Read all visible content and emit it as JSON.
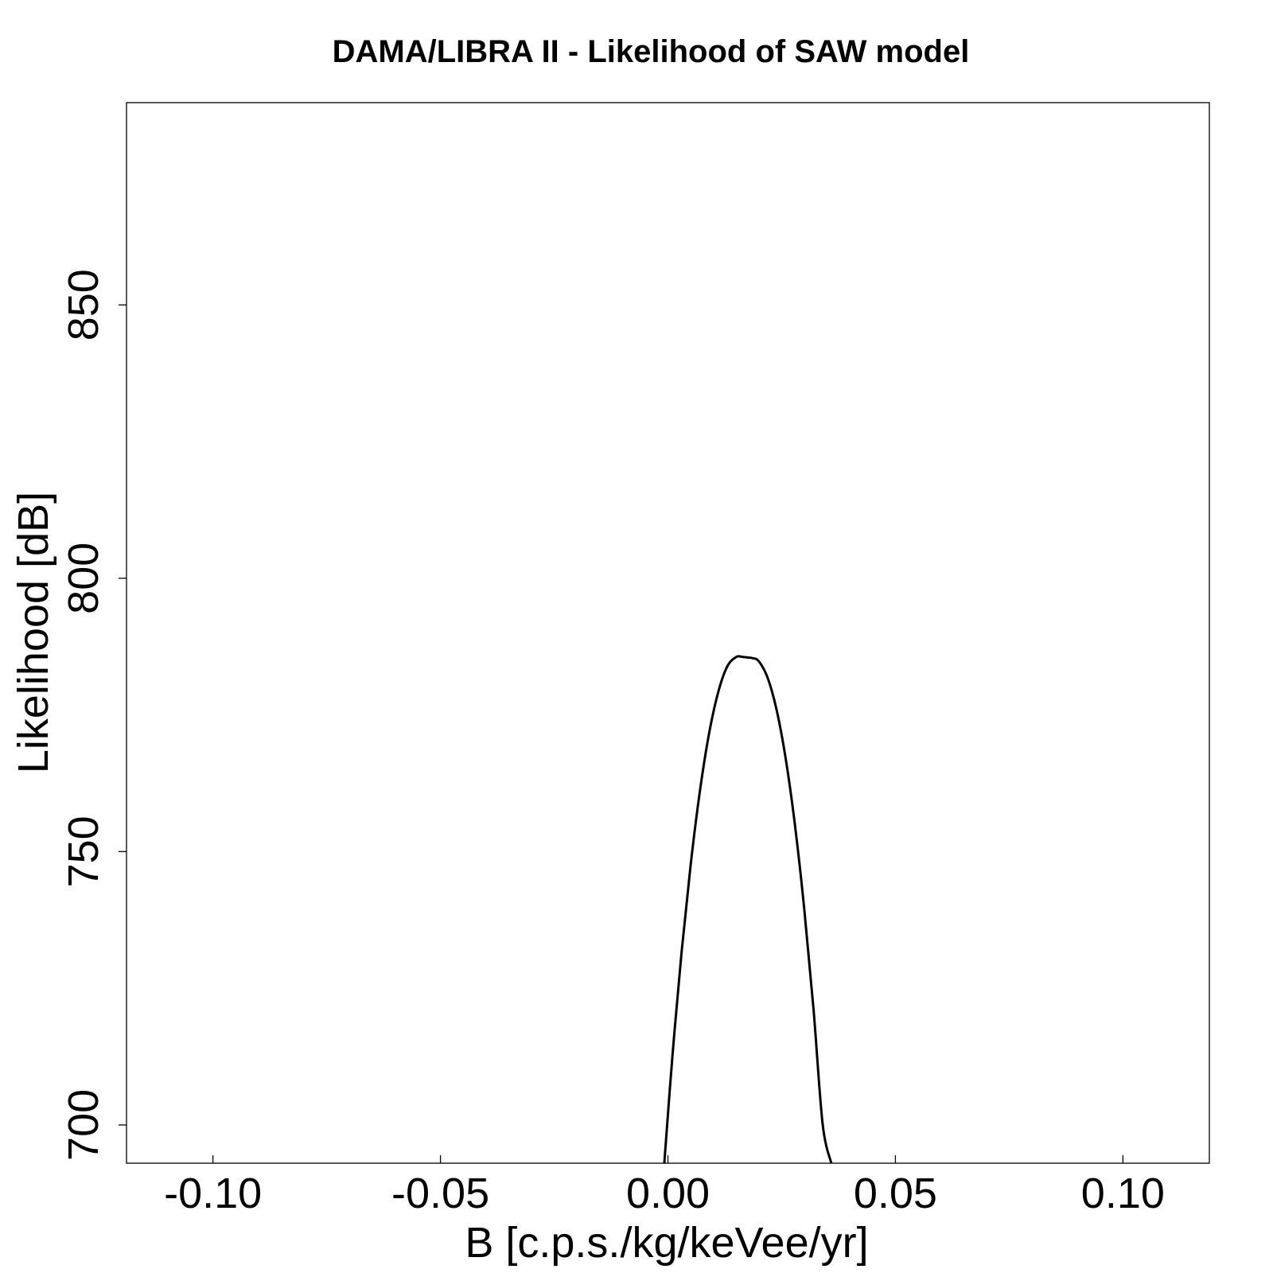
{
  "chart_data": {
    "type": "line",
    "title": "DAMA/LIBRA II - Likelihood of SAW model",
    "xlabel": "B [c.p.s./kg/keVee/yr]",
    "ylabel": "Likelihood [dB]",
    "xlim": [
      -0.119,
      0.119
    ],
    "ylim": [
      693,
      887
    ],
    "x_ticks": [
      -0.1,
      -0.05,
      0.0,
      0.05,
      0.1
    ],
    "x_tick_labels": [
      "-0.10",
      "-0.05",
      "0.00",
      "0.05",
      "0.10"
    ],
    "y_ticks": [
      700,
      750,
      800,
      850
    ],
    "y_tick_labels": [
      "700",
      "750",
      "800",
      "850"
    ],
    "grid": false,
    "legend": "none",
    "series": [
      {
        "color": "#000000",
        "peak": {
          "x": 0.0175,
          "y": 785.5
        },
        "x": [
          -0.0008,
          0.001,
          0.003,
          0.005,
          0.007,
          0.009,
          0.011,
          0.013,
          0.015,
          0.0165,
          0.0175,
          0.0185,
          0.02,
          0.022,
          0.024,
          0.026,
          0.028,
          0.03,
          0.032,
          0.034,
          0.0359
        ],
        "y": [
          693.0,
          712.7,
          731.6,
          747.6,
          760.9,
          771.4,
          779.0,
          783.8,
          785.6,
          785.6,
          785.5,
          785.4,
          784.8,
          781.6,
          775.5,
          766.4,
          754.3,
          739.2,
          721.2,
          700.2,
          693.0
        ]
      }
    ]
  }
}
